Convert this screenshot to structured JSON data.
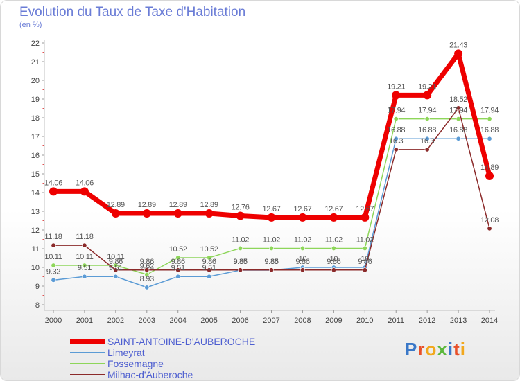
{
  "title": "Evolution du Taux de Taxe d'Habitation",
  "subtitle": "(en %)",
  "logo_text": "Proxiti",
  "logo_colors": [
    "#3a78c8",
    "#e8502a",
    "#f2a81d",
    "#5cb83c",
    "#3a78c8",
    "#e8502a",
    "#f2a81d"
  ],
  "chart_data": {
    "type": "line",
    "x": [
      "2000",
      "2001",
      "2002",
      "2003",
      "2004",
      "2005",
      "2006",
      "2007",
      "2008",
      "2009",
      "2010",
      "2011",
      "2012",
      "2013",
      "2014"
    ],
    "ylim": [
      8,
      22
    ],
    "yticks": [
      8,
      9,
      10,
      11,
      12,
      13,
      14,
      15,
      16,
      17,
      18,
      19,
      20,
      21,
      22
    ],
    "grid": false,
    "legend_position": "bottom-left",
    "series": [
      {
        "name": "SAINT-ANTOINE-D'AUBEROCHE",
        "color": "#ee0000",
        "values": [
          14.06,
          14.06,
          12.89,
          12.89,
          12.89,
          12.89,
          12.76,
          12.67,
          12.67,
          12.67,
          12.67,
          19.21,
          19.21,
          21.43,
          14.89
        ],
        "labels": [
          "14.06",
          "14.06",
          "12.89",
          "12.89",
          "12.89",
          "12.89",
          "12.76",
          "12.67",
          "12.67",
          "12.67",
          "12.67",
          "19.21",
          "19.21",
          "21.43",
          "14.89"
        ]
      },
      {
        "name": "Limeyrat",
        "color": "#5b9bd5",
        "values": [
          9.32,
          9.51,
          9.51,
          8.93,
          9.51,
          9.51,
          9.85,
          9.85,
          10,
          10,
          10,
          16.88,
          16.88,
          16.88,
          16.88
        ],
        "labels": [
          "9.32",
          "9.51",
          "9.51",
          "8.93",
          "9.51",
          "9.51",
          "9.85",
          "9.85",
          "10",
          "10",
          "10",
          "16.88",
          "16.88",
          "16.88",
          "16.88"
        ]
      },
      {
        "name": "Fossemagne",
        "color": "#8ed65a",
        "values": [
          10.11,
          10.11,
          10.11,
          9.62,
          10.52,
          10.52,
          11.02,
          11.02,
          11.02,
          11.02,
          11.02,
          17.94,
          17.94,
          17.94,
          17.94
        ],
        "labels": [
          "10.11",
          "10.11",
          "10.11",
          "9.62",
          "10.52",
          "10.52",
          "11.02",
          "11.02",
          "11.02",
          "11.02",
          "11.02",
          "17.94",
          "17.94",
          "17.94",
          "17.94"
        ]
      },
      {
        "name": "Milhac-d'Auberoche",
        "color": "#8b2a2a",
        "values": [
          11.18,
          11.18,
          9.86,
          9.86,
          9.86,
          9.86,
          9.86,
          9.86,
          9.86,
          9.86,
          9.86,
          16.3,
          16.3,
          18.52,
          12.08
        ],
        "labels": [
          "11.18",
          "11.18",
          "9.86",
          "9.86",
          "9.86",
          "9.86",
          "9.86",
          "9.86",
          "9.86",
          "9.86",
          "9.86",
          "16.3",
          "16.3",
          "18.52",
          "12.08"
        ]
      }
    ]
  }
}
